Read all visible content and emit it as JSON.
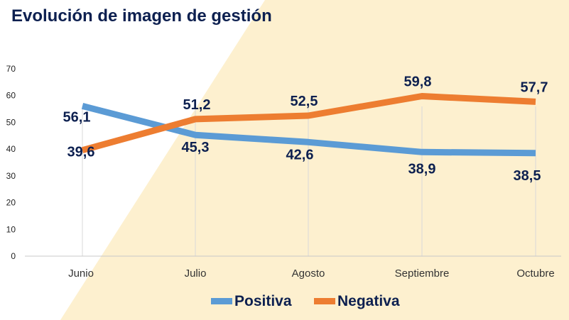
{
  "chart_data": {
    "type": "line",
    "title": "Evolución de imagen de gestión",
    "categories": [
      "Junio",
      "Julio",
      "Agosto",
      "Septiembre",
      "Octubre"
    ],
    "series": [
      {
        "name": "Positiva",
        "values": [
          56.1,
          45.3,
          42.6,
          38.9,
          38.5
        ],
        "labels": [
          "56,1",
          "45,3",
          "42,6",
          "38,9",
          "38,5"
        ],
        "color": "#5b9bd5"
      },
      {
        "name": "Negativa",
        "values": [
          39.6,
          51.2,
          52.5,
          59.8,
          57.7
        ],
        "labels": [
          "39,6",
          "51,2",
          "52,5",
          "59,8",
          "57,7"
        ],
        "color": "#ed7d31"
      }
    ],
    "yticks": [
      "0",
      "10",
      "20",
      "30",
      "40",
      "50",
      "60",
      "70"
    ],
    "ylim": [
      0,
      70
    ],
    "xlabel": "",
    "ylabel": "",
    "grid": "vertical",
    "legend": "bottom",
    "background_color": "#fdf0cf",
    "text_color": "#0d2050"
  }
}
